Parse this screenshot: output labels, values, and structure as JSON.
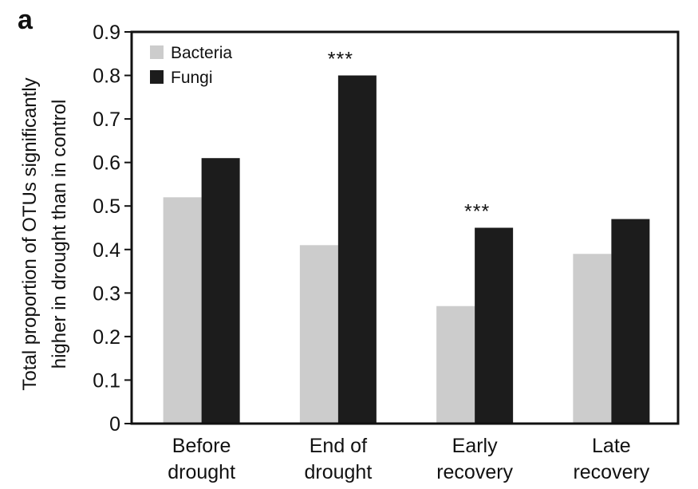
{
  "panel_label": "a",
  "chart_data": {
    "type": "bar",
    "title": "",
    "xlabel": "",
    "ylabel_lines": [
      "Total proportion of  OTUs significantly",
      "higher in drought than in control"
    ],
    "ylim": [
      0,
      0.9
    ],
    "yticks": [
      "0",
      "0.1",
      "0.2",
      "0.3",
      "0.4",
      "0.5",
      "0.6",
      "0.7",
      "0.8",
      "0.9"
    ],
    "ytick_values": [
      0,
      0.1,
      0.2,
      0.3,
      0.4,
      0.5,
      0.6,
      0.7,
      0.8,
      0.9
    ],
    "categories": [
      [
        "Before",
        "drought"
      ],
      [
        "End of",
        "drought"
      ],
      [
        "Early",
        "recovery"
      ],
      [
        "Late",
        "recovery"
      ]
    ],
    "series": [
      {
        "name": "Bacteria",
        "color": "#cccccc",
        "values": [
          0.52,
          0.41,
          0.27,
          0.39
        ]
      },
      {
        "name": "Fungi",
        "color": "#1c1c1c",
        "values": [
          0.61,
          0.8,
          0.45,
          0.47
        ]
      }
    ],
    "annotations": [
      {
        "category_index": 1,
        "series_index": 1,
        "text": "***"
      },
      {
        "category_index": 2,
        "series_index": 1,
        "text": "***"
      }
    ],
    "legend_position": "top-left",
    "grid": false
  }
}
